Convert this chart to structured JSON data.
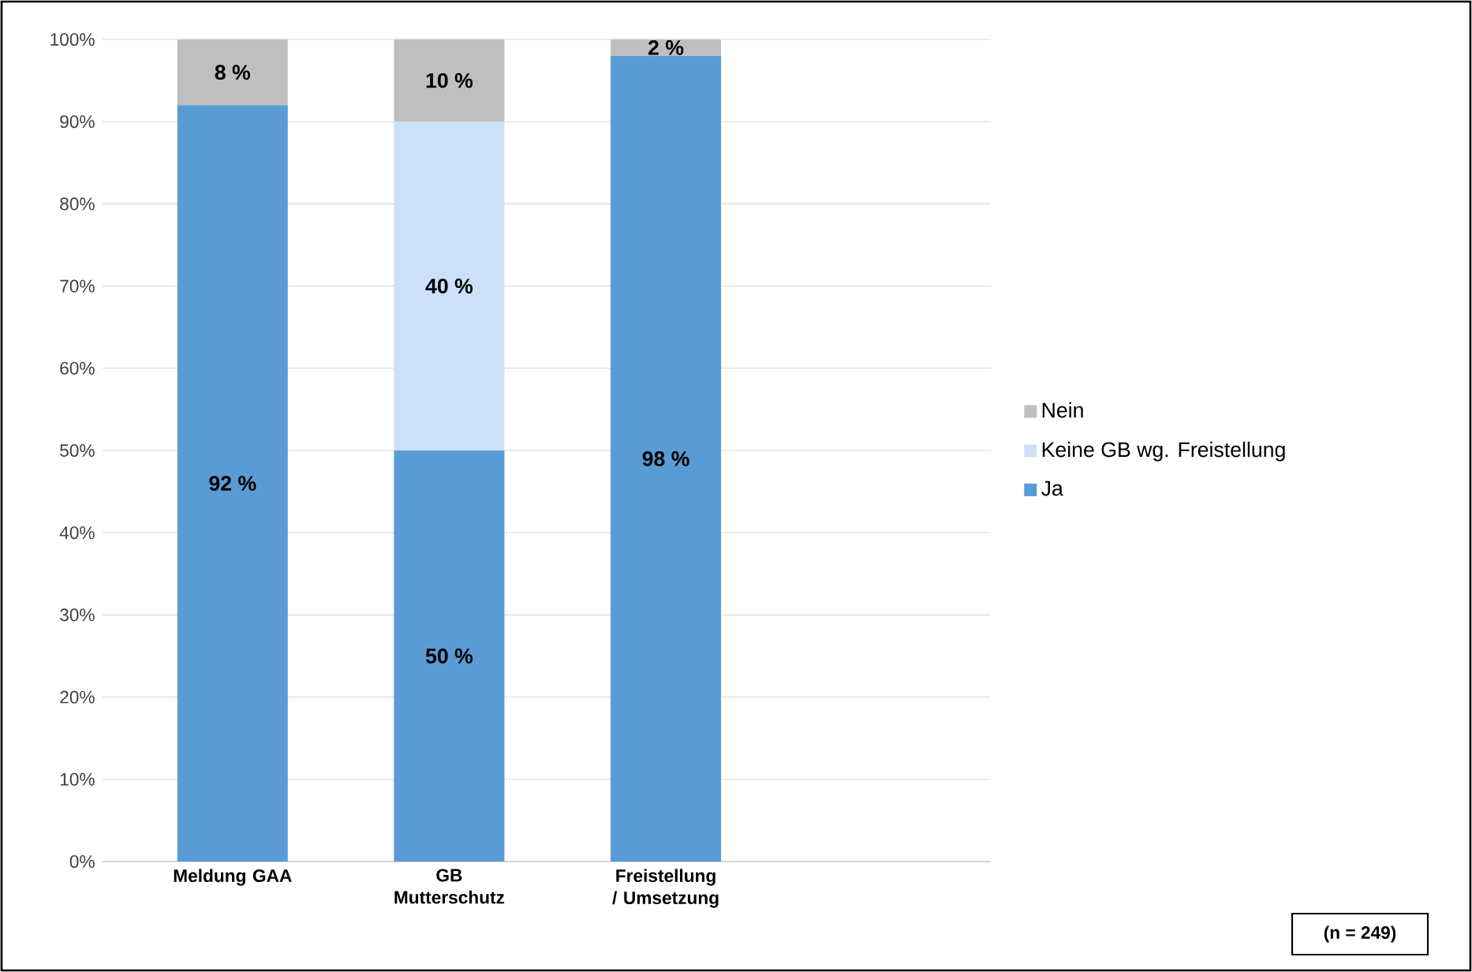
{
  "chart_data": {
    "type": "bar",
    "stacked": true,
    "categories": [
      "Meldung GAA",
      "GB Mutterschutz",
      "Freistellung / Umsetzung"
    ],
    "series": [
      {
        "name": "Ja",
        "color": "#5b9bd5",
        "values": [
          92,
          50,
          98
        ],
        "value_labels": [
          "92 %",
          "50 %",
          "98 %"
        ]
      },
      {
        "name": "Keine GB wg. Freistellung",
        "color": "#cce0fa",
        "values": [
          0,
          40,
          0
        ],
        "value_labels": [
          null,
          "40 %",
          null
        ]
      },
      {
        "name": "Nein",
        "color": "#bfbfbf",
        "values": [
          8,
          10,
          2
        ],
        "value_labels": [
          "8 %",
          "10 %",
          "2 %"
        ]
      }
    ],
    "ylim": [
      0,
      100
    ],
    "yticks": [
      {
        "value": 0,
        "label": "0%"
      },
      {
        "value": 10,
        "label": "10%"
      },
      {
        "value": 20,
        "label": "20%"
      },
      {
        "value": 30,
        "label": "30%"
      },
      {
        "value": 40,
        "label": "40%"
      },
      {
        "value": 50,
        "label": "50%"
      },
      {
        "value": 60,
        "label": "60%"
      },
      {
        "value": 70,
        "label": "70%"
      },
      {
        "value": 80,
        "label": "80%"
      },
      {
        "value": 90,
        "label": "90%"
      },
      {
        "value": 100,
        "label": "100%"
      }
    ],
    "grid": "y",
    "legend": "right",
    "annotations": [
      "(n = 249)"
    ]
  }
}
